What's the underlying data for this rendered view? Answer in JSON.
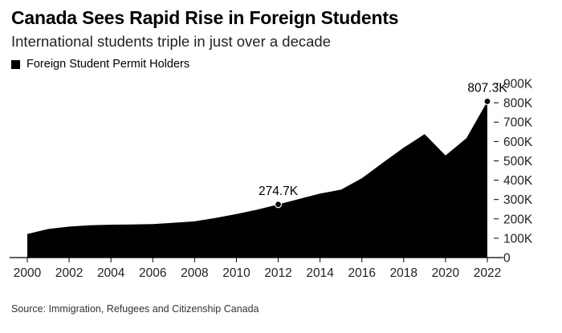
{
  "chart_data": {
    "type": "area",
    "title": "Canada Sees Rapid Rise in Foreign Students",
    "subtitle": "International students triple in just over a decade",
    "legend": [
      {
        "name": "Foreign Student Permit Holders",
        "color": "#000000"
      }
    ],
    "x": [
      2000,
      2001,
      2002,
      2003,
      2004,
      2005,
      2006,
      2007,
      2008,
      2009,
      2010,
      2011,
      2012,
      2013,
      2014,
      2015,
      2016,
      2017,
      2018,
      2019,
      2020,
      2021,
      2022
    ],
    "series": [
      {
        "name": "Foreign Student Permit Holders",
        "values": [
          122000,
          148000,
          160000,
          167000,
          170000,
          171000,
          173000,
          180000,
          187000,
          205000,
          225000,
          248000,
          274700,
          303000,
          331000,
          351000,
          410000,
          490000,
          568000,
          638000,
          528000,
          617000,
          807300
        ]
      }
    ],
    "annotations": [
      {
        "x": 2012,
        "y": 274700,
        "label": "274.7K"
      },
      {
        "x": 2022,
        "y": 807300,
        "label": "807.3K"
      }
    ],
    "xticks": [
      2000,
      2002,
      2004,
      2006,
      2008,
      2010,
      2012,
      2014,
      2016,
      2018,
      2020,
      2022
    ],
    "yticks": [
      0,
      100000,
      200000,
      300000,
      400000,
      500000,
      600000,
      700000,
      800000,
      900000
    ],
    "ytick_labels": [
      "0",
      "100K",
      "200K",
      "300K",
      "400K",
      "500K",
      "600K",
      "700K",
      "800K",
      "900K"
    ],
    "xlim": [
      2000,
      2022
    ],
    "ylim": [
      0,
      900000
    ],
    "xlabel": "",
    "ylabel": "",
    "grid": false,
    "y_axis_side": "right"
  },
  "source": "Source: Immigration, Refugees and Citizenship Canada"
}
